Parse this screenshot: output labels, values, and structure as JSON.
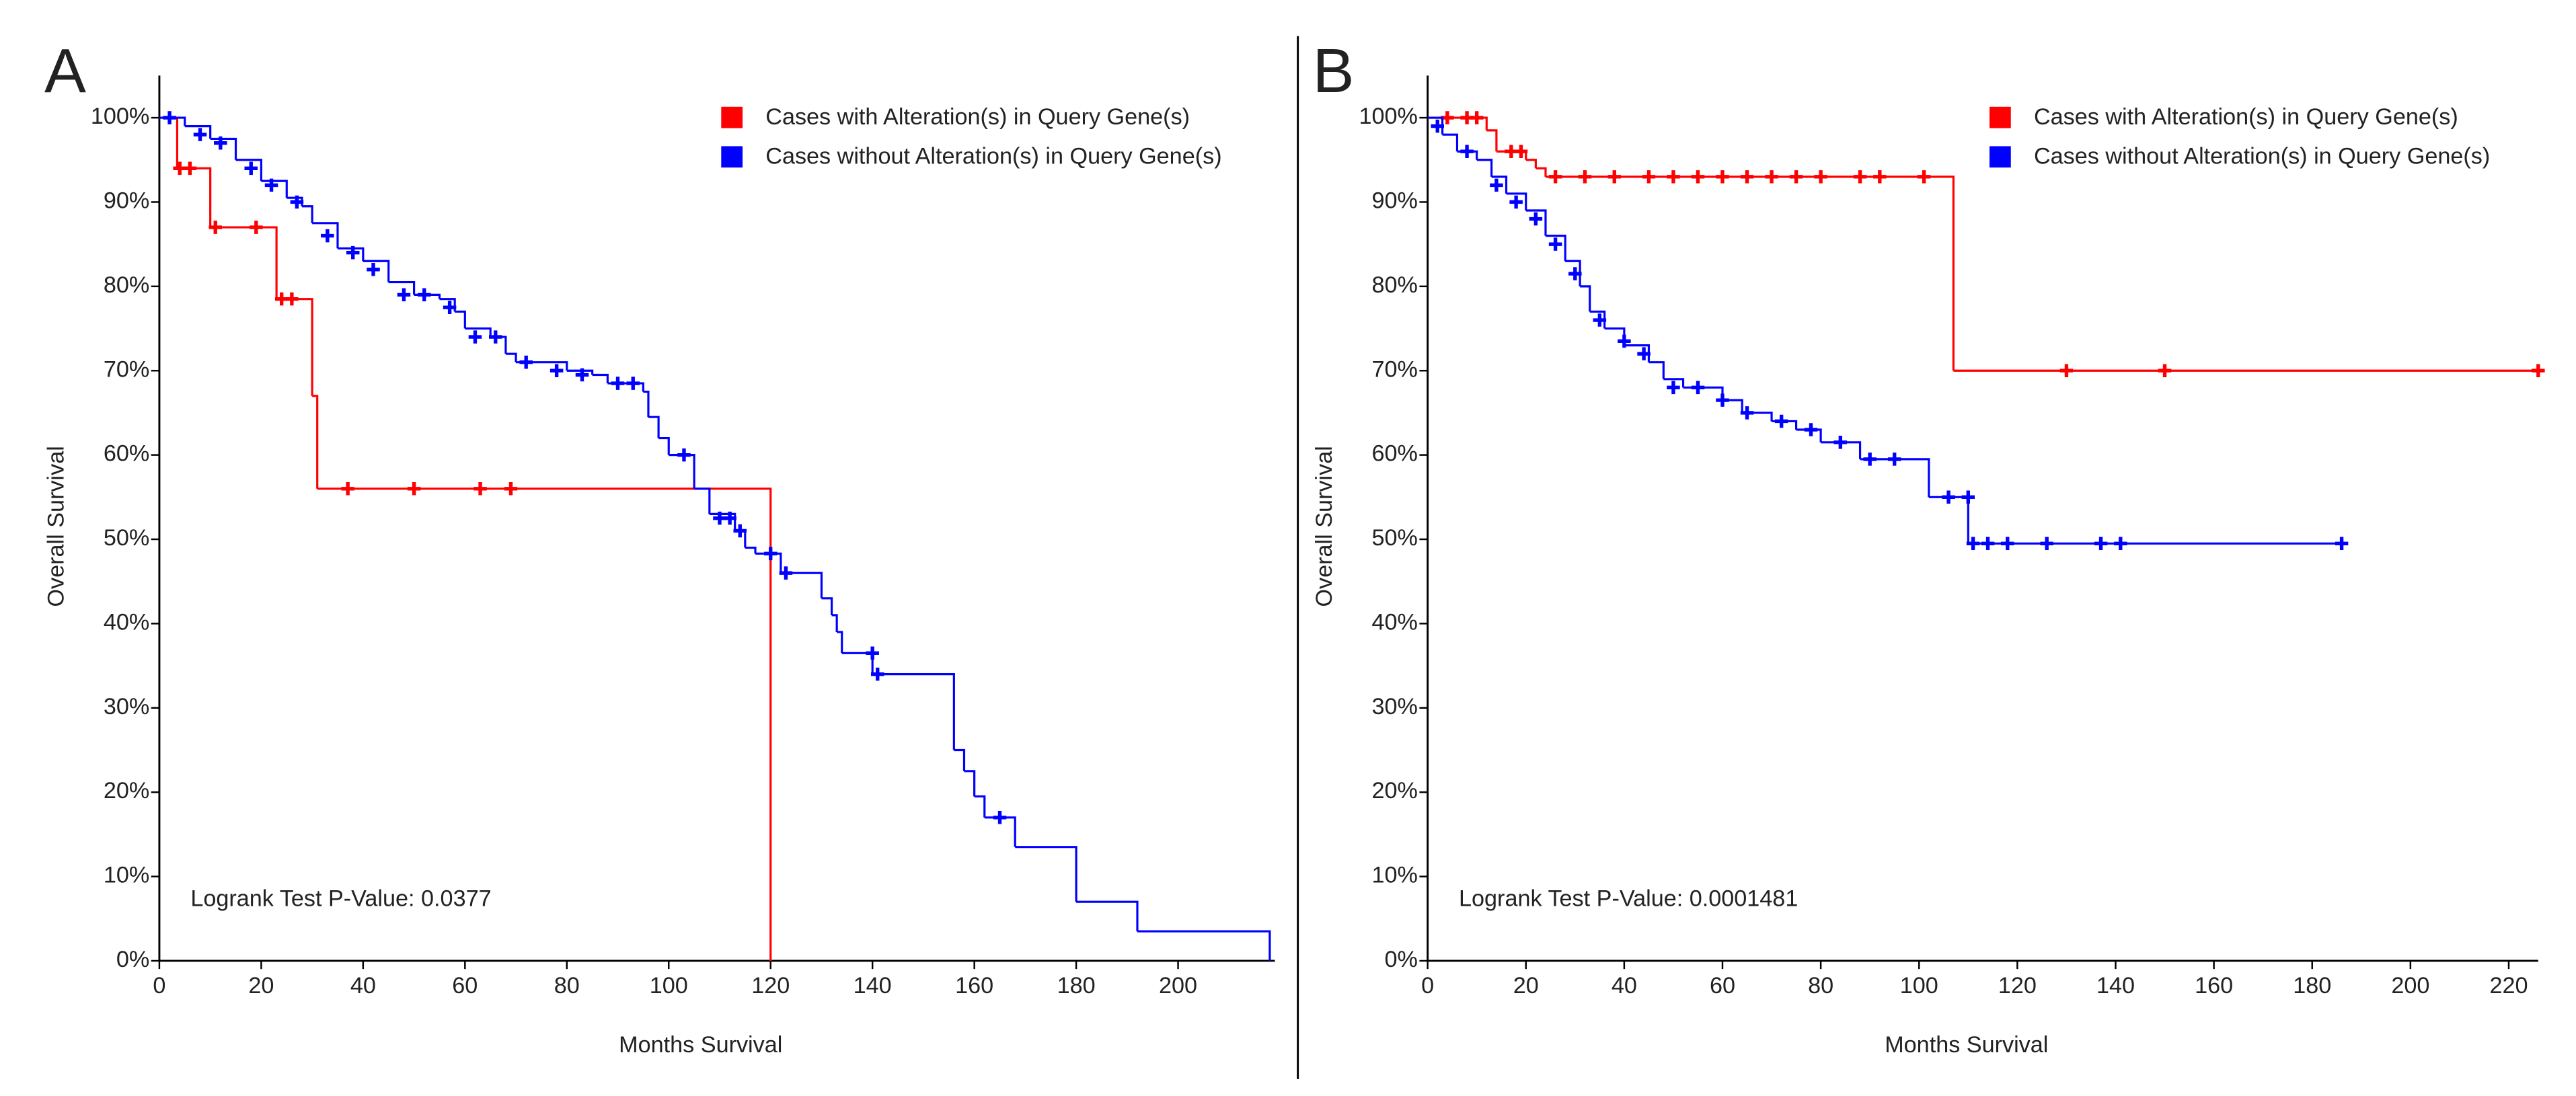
{
  "chart_data": [
    {
      "type": "line",
      "panel": "A",
      "x_label": "Months Survival",
      "y_label": "Overall Survival",
      "annotation": "Logrank Test P-Value: 0.0377",
      "xlim": [
        0,
        219
      ],
      "ylim": [
        0,
        105
      ],
      "xticks": [
        0,
        20,
        40,
        60,
        80,
        100,
        120,
        140,
        160,
        180,
        200
      ],
      "yticks": [
        {
          "value": 0,
          "label": "0%"
        },
        {
          "value": 10,
          "label": "10%"
        },
        {
          "value": 20,
          "label": "20%"
        },
        {
          "value": 30,
          "label": "30%"
        },
        {
          "value": 40,
          "label": "40%"
        },
        {
          "value": 50,
          "label": "50%"
        },
        {
          "value": 60,
          "label": "60%"
        },
        {
          "value": 70,
          "label": "70%"
        },
        {
          "value": 80,
          "label": "80%"
        },
        {
          "value": 90,
          "label": "90%"
        },
        {
          "value": 100,
          "label": "100%"
        }
      ],
      "series": [
        {
          "name": "Cases with Alteration(s) in Query Gene(s)",
          "color": "#ff0000",
          "x": [
            0,
            3.5,
            10,
            23,
            30,
            31,
            120
          ],
          "values": [
            100,
            94,
            87,
            78.5,
            67,
            56,
            0
          ],
          "censor_x": [
            4,
            6,
            11,
            19,
            24,
            26,
            37,
            50,
            63,
            69
          ],
          "censor_values": [
            94,
            94,
            87,
            87,
            78.5,
            78.5,
            56,
            56,
            56,
            56
          ]
        },
        {
          "name": "Cases without Alteration(s) in Query Gene(s)",
          "color": "#0000ff",
          "x": [
            0,
            5,
            10,
            15,
            20,
            25,
            28,
            30,
            35,
            40,
            45,
            50,
            55,
            58,
            60,
            65,
            68,
            70,
            80,
            85,
            88,
            95,
            96,
            98,
            100,
            105,
            108,
            113,
            115,
            117,
            122,
            130,
            132,
            133,
            134,
            140,
            156,
            158,
            160,
            162,
            168,
            180,
            192,
            218
          ],
          "values": [
            100,
            99,
            97.5,
            95,
            92.5,
            90.5,
            89.5,
            87.5,
            84.5,
            83,
            80.5,
            79,
            78.5,
            77,
            75,
            74,
            72,
            71,
            70,
            69.5,
            68.5,
            67.5,
            64.5,
            62,
            60,
            56,
            53,
            51,
            49,
            48.3,
            46,
            43,
            41,
            39,
            36.5,
            34,
            25,
            22.5,
            19.5,
            17,
            13.5,
            7,
            3.5,
            0
          ],
          "censor_x": [
            2,
            8,
            12,
            18,
            22,
            27,
            33,
            38,
            42,
            48,
            52,
            57,
            62,
            66,
            72,
            78,
            83,
            90,
            93,
            103,
            110,
            112,
            114,
            120,
            123,
            140,
            141,
            165
          ],
          "censor_values": [
            100,
            98,
            97,
            94,
            92,
            90,
            86,
            84,
            82,
            79,
            79,
            77.5,
            74,
            74,
            71,
            70,
            69.5,
            68.5,
            68.5,
            60,
            52.5,
            52.5,
            51,
            48.3,
            46,
            36.5,
            34,
            17
          ]
        }
      ]
    },
    {
      "type": "line",
      "panel": "B",
      "x_label": "Months Survival",
      "y_label": "Overall Survival",
      "annotation": "Logrank Test P-Value: 0.0001481",
      "xlim": [
        0,
        226
      ],
      "ylim": [
        0,
        105
      ],
      "xticks": [
        0,
        20,
        40,
        60,
        80,
        100,
        120,
        140,
        160,
        180,
        200,
        220
      ],
      "yticks": [
        {
          "value": 0,
          "label": "0%"
        },
        {
          "value": 10,
          "label": "10%"
        },
        {
          "value": 20,
          "label": "20%"
        },
        {
          "value": 30,
          "label": "30%"
        },
        {
          "value": 40,
          "label": "40%"
        },
        {
          "value": 50,
          "label": "50%"
        },
        {
          "value": 60,
          "label": "60%"
        },
        {
          "value": 70,
          "label": "70%"
        },
        {
          "value": 80,
          "label": "80%"
        },
        {
          "value": 90,
          "label": "90%"
        },
        {
          "value": 100,
          "label": "100%"
        }
      ],
      "series": [
        {
          "name": "Cases with Alteration(s) in Query Gene(s)",
          "color": "#ff0000",
          "x": [
            0,
            12,
            14,
            20,
            22,
            24,
            107
          ],
          "values": [
            100,
            98.5,
            96,
            95,
            94,
            93,
            70
          ],
          "censor_x": [
            4,
            8,
            10,
            17,
            19,
            26,
            32,
            38,
            45,
            50,
            55,
            60,
            65,
            70,
            75,
            80,
            88,
            92,
            101,
            130,
            150,
            226
          ],
          "censor_values": [
            100,
            100,
            100,
            96,
            96,
            93,
            93,
            93,
            93,
            93,
            93,
            93,
            93,
            93,
            93,
            93,
            93,
            93,
            93,
            70,
            70,
            70
          ]
        },
        {
          "name": "Cases without Alteration(s) in Query Gene(s)",
          "color": "#0000ff",
          "x": [
            0,
            3,
            6,
            10,
            13,
            16,
            20,
            24,
            28,
            31,
            33,
            36,
            40,
            45,
            48,
            52,
            60,
            64,
            70,
            75,
            80,
            88,
            102,
            110
          ],
          "values": [
            100,
            98,
            96,
            95,
            93,
            91,
            89,
            86,
            83,
            80,
            77,
            75,
            73,
            71,
            69,
            68,
            66.5,
            65,
            64,
            63,
            61.5,
            59.5,
            55,
            49.5
          ],
          "censor_x": [
            2,
            8,
            14,
            18,
            22,
            26,
            30,
            35,
            40,
            44,
            50,
            55,
            60,
            65,
            72,
            78,
            84,
            90,
            95,
            106,
            110,
            111,
            114,
            118,
            126,
            137,
            141,
            186
          ],
          "censor_values": [
            99,
            96,
            92,
            90,
            88,
            85,
            81.5,
            76,
            73.5,
            72,
            68,
            68,
            66.5,
            65,
            64,
            63,
            61.5,
            59.5,
            59.5,
            55,
            55,
            49.5,
            49.5,
            49.5,
            49.5,
            49.5,
            49.5,
            49.5
          ]
        }
      ]
    }
  ]
}
